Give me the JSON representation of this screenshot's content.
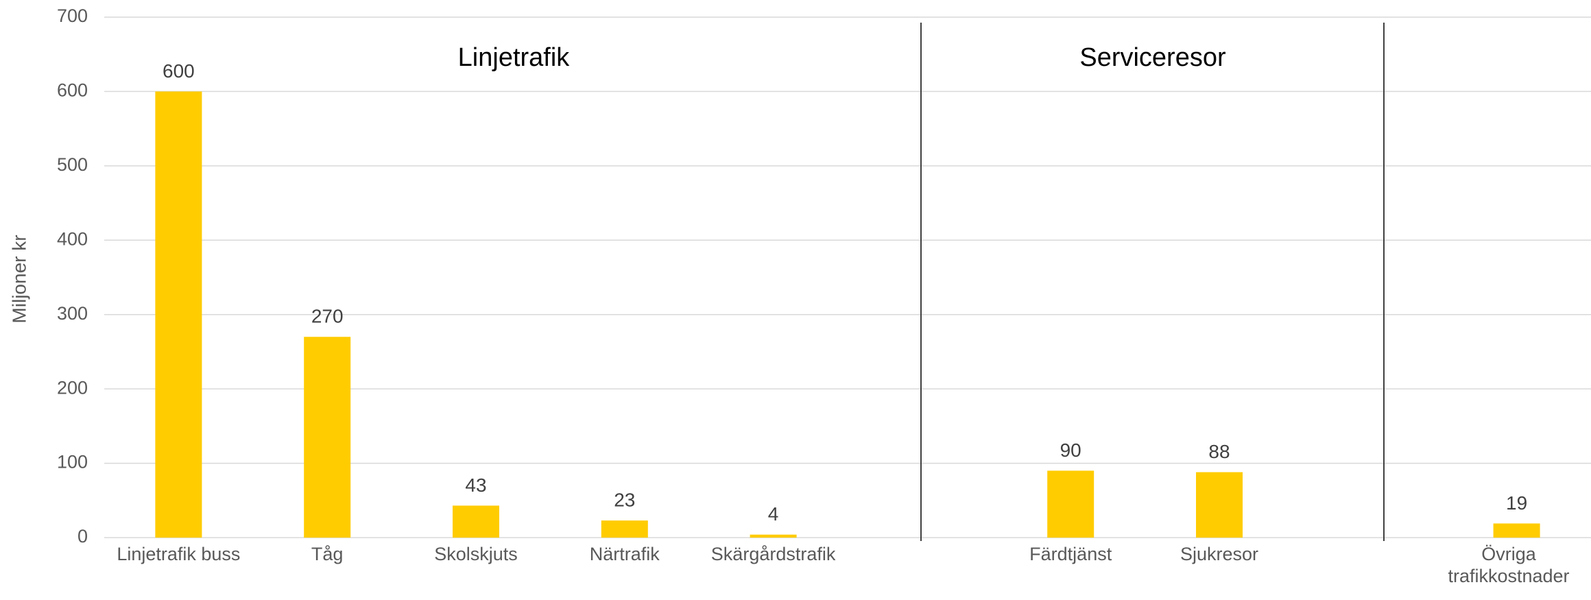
{
  "chart_data": {
    "type": "bar",
    "y_label": "Miljoner kr",
    "group_labels": [
      "Linjetrafik",
      "Serviceresor"
    ],
    "categories": [
      "Linjetrafik buss",
      "Tåg",
      "Skolskjuts",
      "Närtrafik",
      "Skärgårdstrafik",
      null,
      "Färdtjänst",
      "Sjukresor",
      null,
      "Övriga trafikkostnader"
    ],
    "values": [
      600,
      270,
      43,
      23,
      4,
      null,
      90,
      88,
      null,
      19
    ],
    "color": "#FFCC00",
    "ylim": [
      0,
      700
    ],
    "yticks": [
      0,
      100,
      200,
      300,
      400,
      500,
      600,
      700
    ],
    "grid": true
  }
}
